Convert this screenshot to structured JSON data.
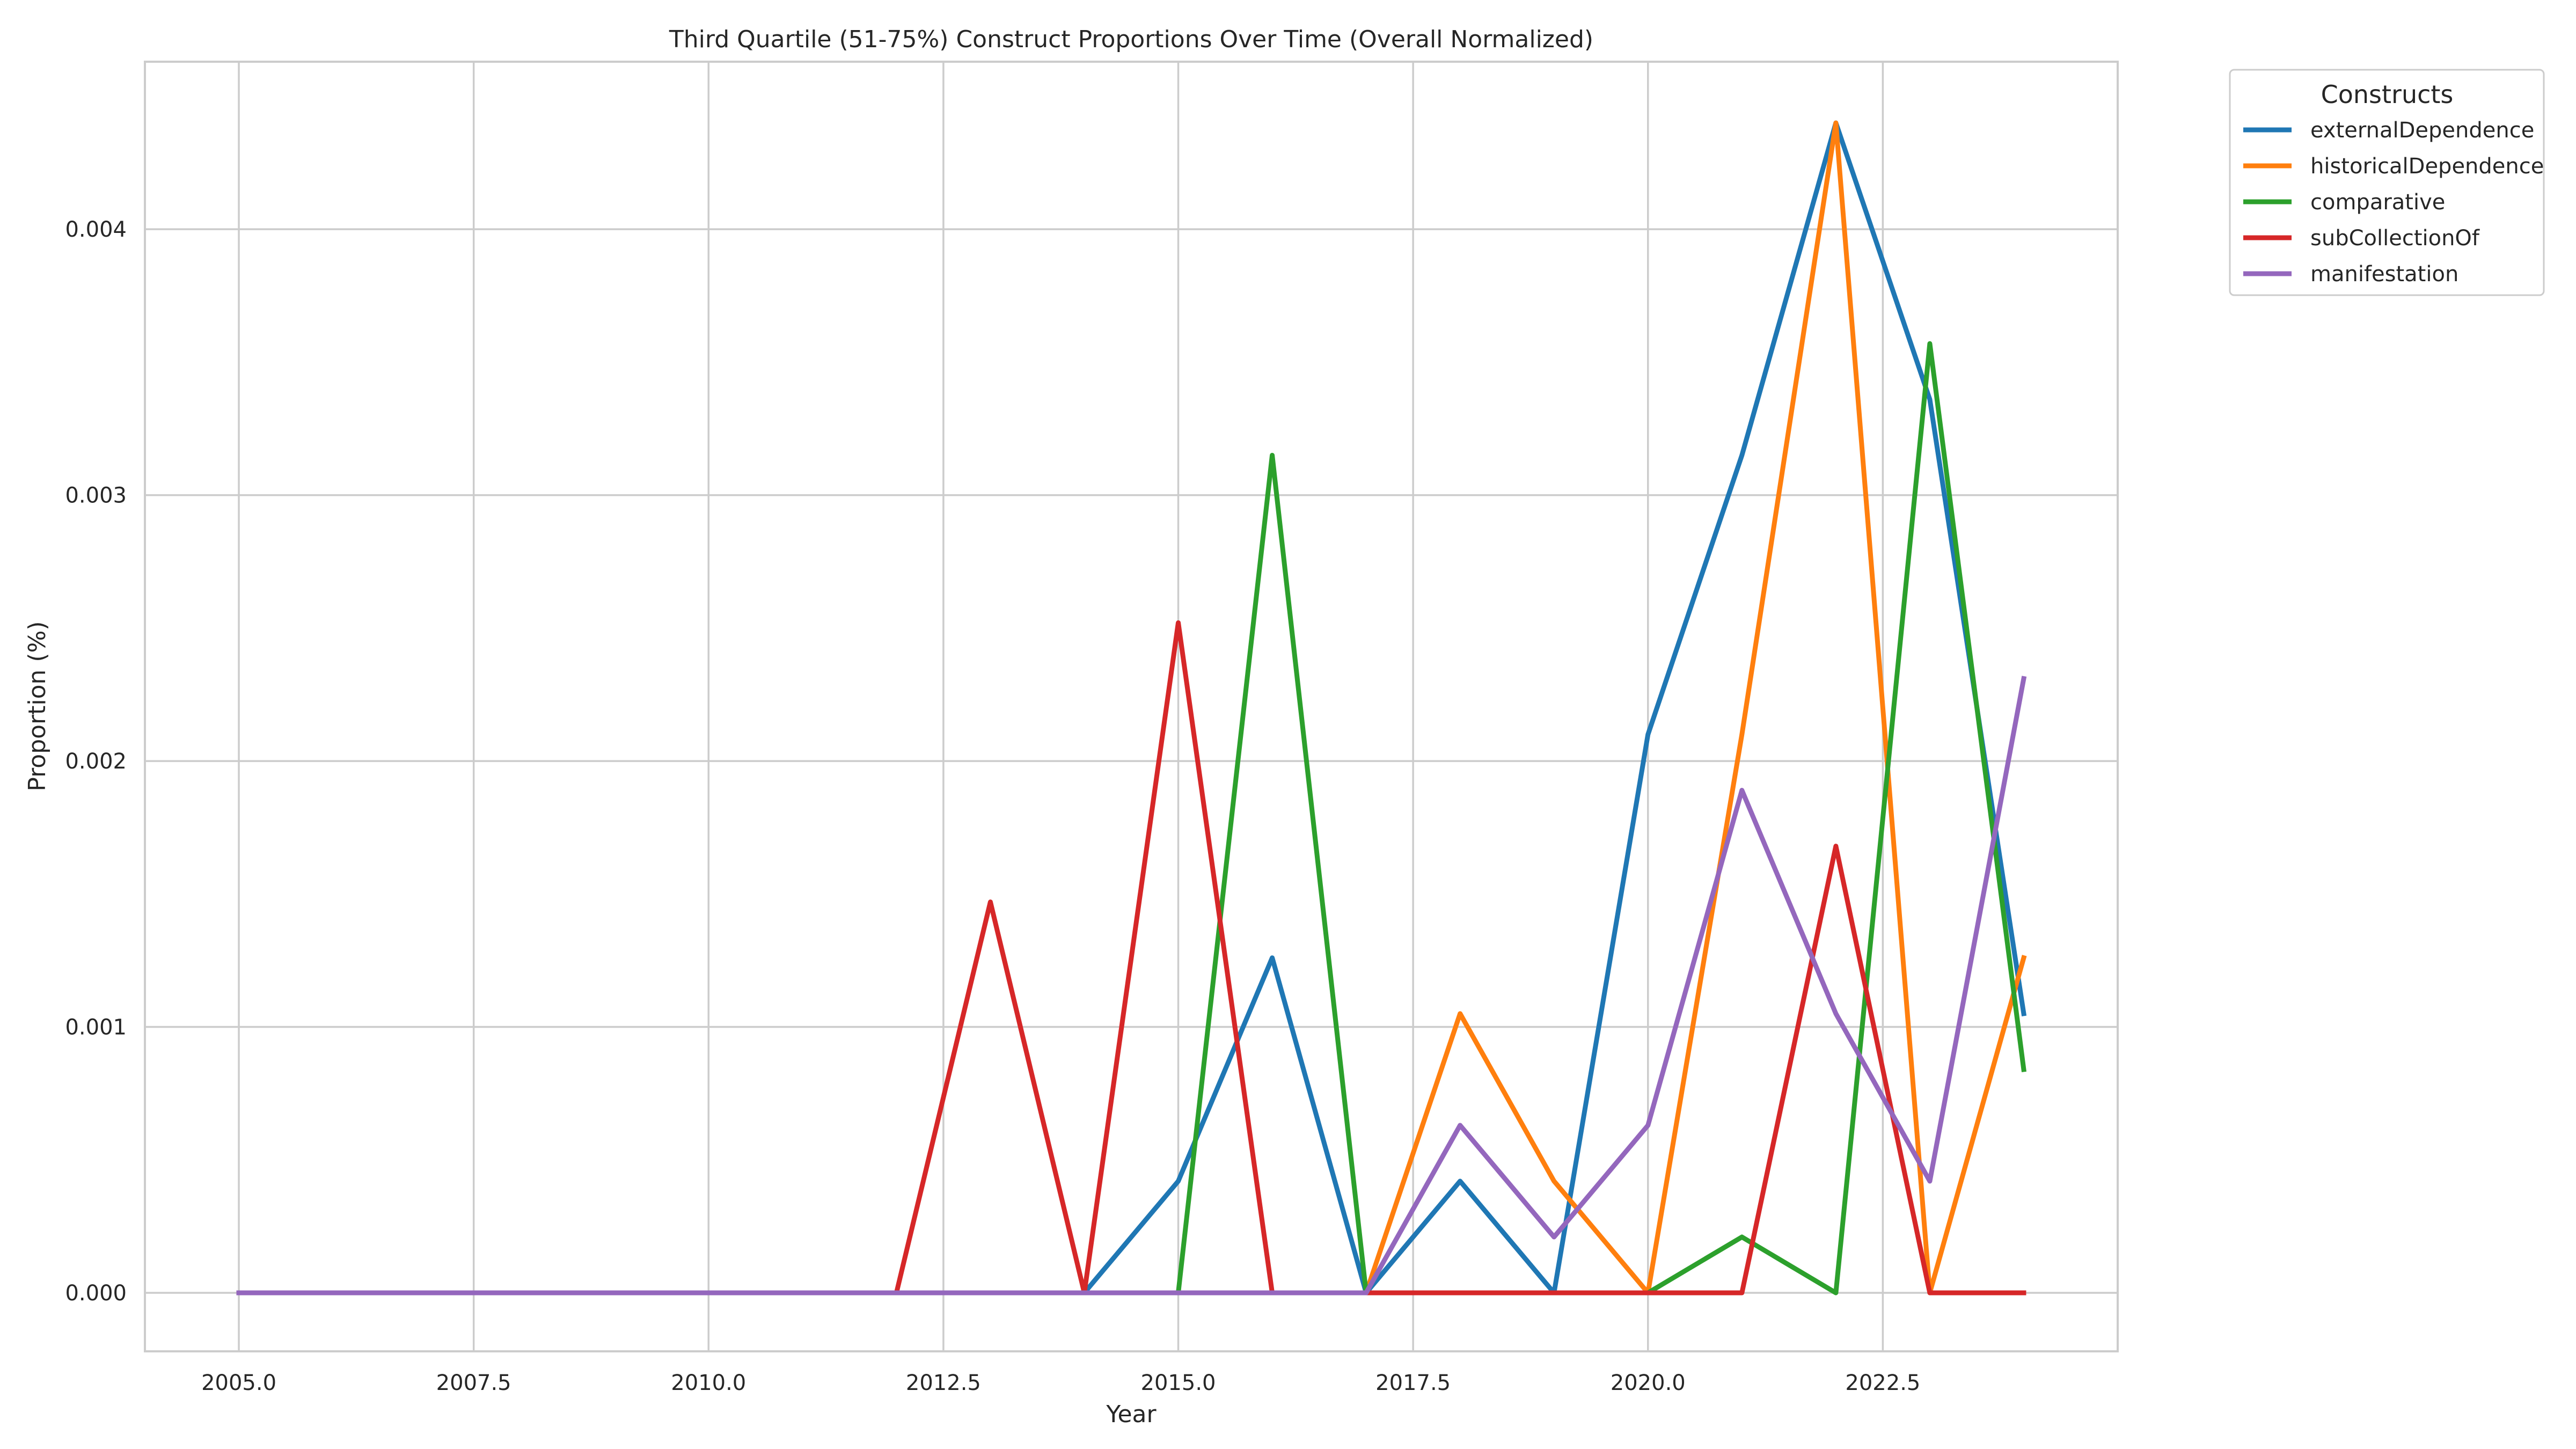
{
  "chart_data": {
    "type": "line",
    "title": "Third Quartile (51-75%) Construct Proportions Over Time (Overall Normalized)",
    "xlabel": "Year",
    "ylabel": "Proportion (%)",
    "xlim": [
      2004.0,
      2025.0
    ],
    "ylim": [
      -0.00022,
      0.00463
    ],
    "xticks": [
      2005.0,
      2007.5,
      2010.0,
      2012.5,
      2015.0,
      2017.5,
      2020.0,
      2022.5
    ],
    "xtick_labels": [
      "2005.0",
      "2007.5",
      "2010.0",
      "2012.5",
      "2015.0",
      "2017.5",
      "2020.0",
      "2022.5"
    ],
    "yticks": [
      0.0,
      0.001,
      0.002,
      0.003,
      0.004
    ],
    "ytick_labels": [
      "0.000",
      "0.001",
      "0.002",
      "0.003",
      "0.004"
    ],
    "grid": true,
    "legend": {
      "title": "Constructs",
      "placement": "outside-top-right"
    },
    "x": [
      2005,
      2006,
      2007,
      2008,
      2009,
      2010,
      2011,
      2012,
      2013,
      2014,
      2015,
      2016,
      2017,
      2018,
      2019,
      2020,
      2021,
      2022,
      2023,
      2024
    ],
    "series": [
      {
        "name": "externalDependence",
        "color": "#1f77b4",
        "values": [
          0,
          0,
          0,
          0,
          0,
          0,
          0,
          0,
          0,
          0,
          0.00042,
          0.00126,
          0,
          0.00042,
          0,
          0.0021,
          0.00315,
          0.0044,
          0.00336,
          0.00105
        ]
      },
      {
        "name": "historicalDependence",
        "color": "#ff7f0e",
        "values": [
          0,
          0,
          0,
          0,
          0,
          0,
          0,
          0,
          0,
          0,
          0,
          0,
          0,
          0.00105,
          0.00042,
          0,
          0.0021,
          0.0044,
          0,
          0.00126
        ]
      },
      {
        "name": "comparative",
        "color": "#2ca02c",
        "values": [
          0,
          0,
          0,
          0,
          0,
          0,
          0,
          0,
          0,
          0,
          0,
          0.00315,
          0,
          0,
          0,
          0,
          0.00021,
          0,
          0.00357,
          0.00084
        ]
      },
      {
        "name": "subCollectionOf",
        "color": "#d62728",
        "values": [
          0,
          0,
          0,
          0,
          0,
          0,
          0,
          0,
          0.00147,
          0,
          0.00252,
          0,
          0,
          0,
          0,
          0,
          0,
          0.00168,
          0,
          0
        ]
      },
      {
        "name": "manifestation",
        "color": "#9467bd",
        "values": [
          0,
          0,
          0,
          0,
          0,
          0,
          0,
          0,
          0,
          0,
          0,
          0,
          0,
          0.00063,
          0.00021,
          0.00063,
          0.00189,
          0.00105,
          0.00042,
          0.00231
        ]
      }
    ]
  }
}
